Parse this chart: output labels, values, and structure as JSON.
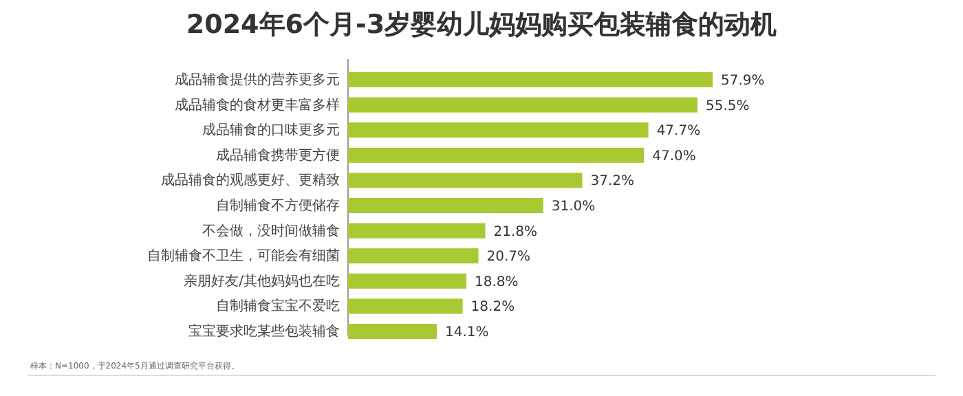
{
  "chart_data": {
    "type": "bar",
    "orientation": "horizontal",
    "title": "2024年6个月-3岁婴幼儿妈妈购买包装辅食的动机",
    "categories": [
      "成品辅食提供的营养更多元",
      "成品辅食的食材更丰富多样",
      "成品辅食的口味更多元",
      "成品辅食携带更方便",
      "成品辅食的观感更好、更精致",
      "自制辅食不方便储存",
      "不会做，没时间做辅食",
      "自制辅食不卫生，可能会有细菌",
      "亲朋好友/其他妈妈也在吃",
      "自制辅食宝宝不爱吃",
      "宝宝要求吃某些包装辅食"
    ],
    "values": [
      57.9,
      55.5,
      47.7,
      47.0,
      37.2,
      31.0,
      21.8,
      20.7,
      18.8,
      18.2,
      14.1
    ],
    "value_labels": [
      "57.9%",
      "55.5%",
      "47.7%",
      "47.0%",
      "37.2%",
      "31.0%",
      "21.8%",
      "20.7%",
      "18.8%",
      "18.2%",
      "14.1%"
    ],
    "color": "#a9c932",
    "annotations": [
      "样本：N=1000，于2024年5月通过调查研究平台获得。"
    ]
  }
}
